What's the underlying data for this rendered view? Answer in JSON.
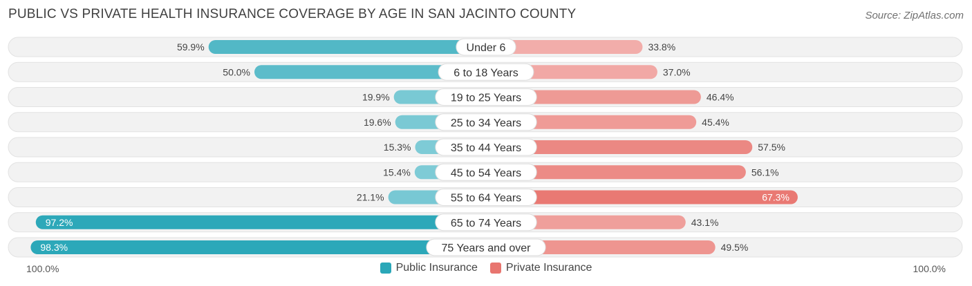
{
  "title": "PUBLIC VS PRIVATE HEALTH INSURANCE COVERAGE BY AGE IN SAN JACINTO COUNTY",
  "source": "Source: ZipAtlas.com",
  "axis": {
    "left_label": "100.0%",
    "right_label": "100.0%"
  },
  "legend": [
    {
      "label": "Public Insurance",
      "color": "#2aa7b8"
    },
    {
      "label": "Private Insurance",
      "color": "#e8756f"
    }
  ],
  "chart_data": {
    "type": "bar",
    "orientation": "horizontal-diverging",
    "categories": [
      "Under 6",
      "6 to 18 Years",
      "19 to 25 Years",
      "25 to 34 Years",
      "35 to 44 Years",
      "45 to 54 Years",
      "55 to 64 Years",
      "65 to 74 Years",
      "75 Years and over"
    ],
    "series": [
      {
        "name": "Public Insurance",
        "values": [
          59.9,
          50.0,
          19.9,
          19.6,
          15.3,
          15.4,
          21.1,
          97.2,
          98.3
        ],
        "labels": [
          "59.9%",
          "50.0%",
          "19.9%",
          "19.6%",
          "15.3%",
          "15.4%",
          "21.1%",
          "97.2%",
          "98.3%"
        ]
      },
      {
        "name": "Private Insurance",
        "values": [
          33.8,
          37.0,
          46.4,
          45.4,
          57.5,
          56.1,
          67.3,
          43.1,
          49.5
        ],
        "labels": [
          "33.8%",
          "37.0%",
          "46.4%",
          "45.4%",
          "57.5%",
          "56.1%",
          "67.3%",
          "43.1%",
          "49.5%"
        ]
      }
    ],
    "xlim": [
      -100,
      100
    ]
  }
}
